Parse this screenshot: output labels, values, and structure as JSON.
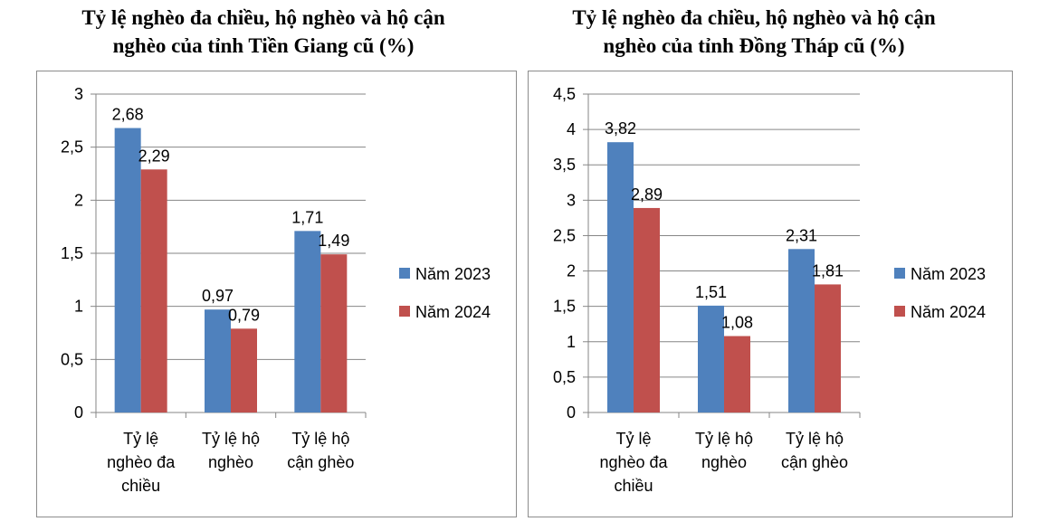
{
  "colors": {
    "series_2023": "#4F81BD",
    "series_2024": "#C0504D",
    "grid": "#868686"
  },
  "chart_data": [
    {
      "type": "bar",
      "title": [
        "Tỷ lệ nghèo đa chiều, hộ nghèo và hộ cận",
        "nghèo của tỉnh Tiền Giang cũ (%)"
      ],
      "categories": [
        [
          "Tỷ lệ",
          "nghèo đa",
          "chiều"
        ],
        [
          "Tỷ lệ hộ",
          "nghèo"
        ],
        [
          "Tỷ lệ hộ",
          "cận ghèo"
        ]
      ],
      "series": [
        {
          "name": "Năm 2023",
          "values": [
            2.68,
            0.97,
            1.71
          ],
          "labels": [
            "2,68",
            "0,97",
            "1,71"
          ]
        },
        {
          "name": "Năm 2024",
          "values": [
            2.29,
            0.79,
            1.49
          ],
          "labels": [
            "2,29",
            "0,79",
            "1,49"
          ]
        }
      ],
      "ylim": [
        0,
        3
      ],
      "yticks": [
        0,
        0.5,
        1,
        1.5,
        2,
        2.5,
        3
      ],
      "ytick_labels": [
        "0",
        "0,5",
        "1",
        "1,5",
        "2",
        "2,5",
        "3"
      ],
      "legend": "right",
      "grid": true
    },
    {
      "type": "bar",
      "title": [
        "Tỷ lệ nghèo đa chiều, hộ nghèo và hộ cận",
        "nghèo của tỉnh Đồng Tháp cũ (%)"
      ],
      "categories": [
        [
          "Tỷ lệ",
          "nghèo đa",
          "chiều"
        ],
        [
          "Tỷ lệ hộ",
          "nghèo"
        ],
        [
          "Tỷ lệ hộ",
          "cận ghèo"
        ]
      ],
      "series": [
        {
          "name": "Năm 2023",
          "values": [
            3.82,
            1.51,
            2.31
          ],
          "labels": [
            "3,82",
            "1,51",
            "2,31"
          ]
        },
        {
          "name": "Năm 2024",
          "values": [
            2.89,
            1.08,
            1.81
          ],
          "labels": [
            "2,89",
            "1,08",
            "1,81"
          ]
        }
      ],
      "ylim": [
        0,
        4.5
      ],
      "yticks": [
        0,
        0.5,
        1,
        1.5,
        2,
        2.5,
        3,
        3.5,
        4,
        4.5
      ],
      "ytick_labels": [
        "0",
        "0,5",
        "1",
        "1,5",
        "2",
        "2,5",
        "3",
        "3,5",
        "4",
        "4,5"
      ],
      "legend": "right",
      "grid": true
    }
  ]
}
